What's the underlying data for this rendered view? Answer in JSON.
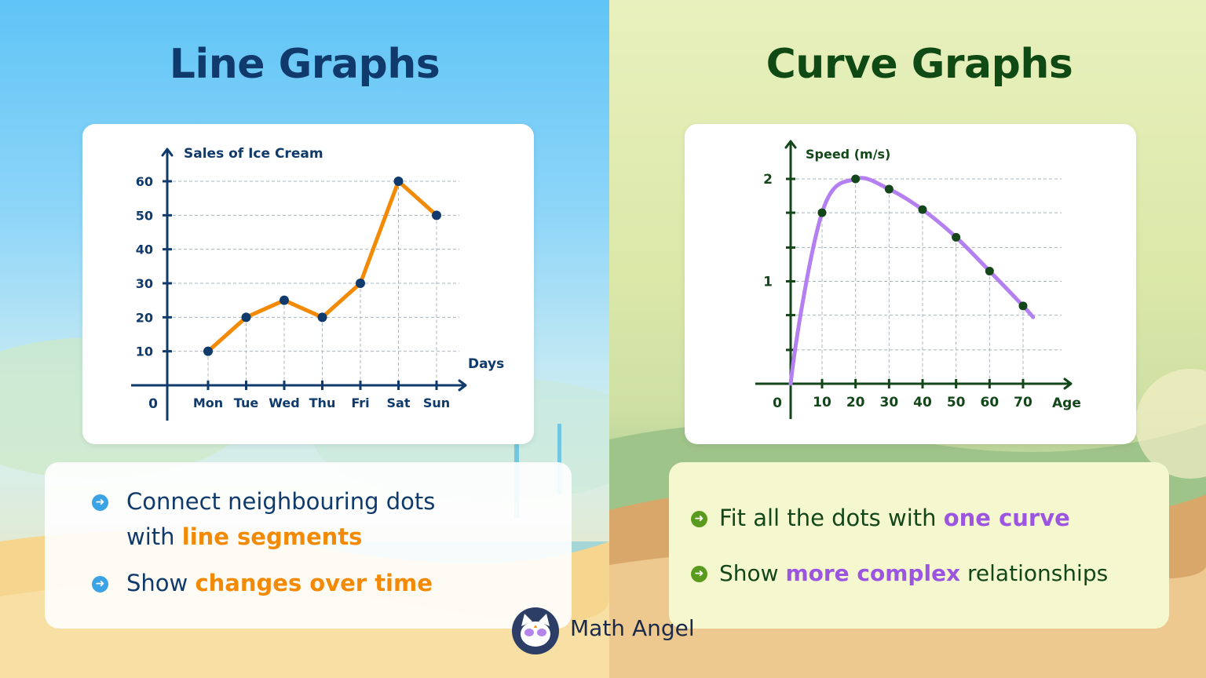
{
  "left": {
    "title": "Line Graphs",
    "colors": {
      "title": "#0f3a6b",
      "line": "#f28a06",
      "point": "#0f3a6b",
      "axis": "#0f3a6b",
      "bullet": "#3aa3e6",
      "text": "#0f3a6b"
    },
    "bullets": [
      {
        "parts": [
          "Connect neighbouring dots",
          "with ",
          "line segments"
        ]
      },
      {
        "parts": [
          "Show ",
          "changes over time"
        ]
      }
    ]
  },
  "right": {
    "title": "Curve Graphs",
    "colors": {
      "title": "#0f4a14",
      "curve": "#b47ff0",
      "point": "#13471a",
      "axis": "#13471a",
      "bullet": "#5a9a1e",
      "text": "#13471a"
    },
    "bullets": [
      {
        "parts": [
          "Fit all the dots with ",
          "one curve"
        ]
      },
      {
        "parts": [
          "Show ",
          "more complex",
          " relationships"
        ]
      }
    ]
  },
  "brand": {
    "name": "Math Angel"
  },
  "chart_data": [
    {
      "type": "line",
      "title": "",
      "ylabel": "Sales of Ice Cream",
      "xlabel": "Days",
      "origin_label": "0",
      "categories": [
        "Mon",
        "Tue",
        "Wed",
        "Thu",
        "Fri",
        "Sat",
        "Sun"
      ],
      "y_ticks": [
        10,
        20,
        30,
        40,
        50,
        60
      ],
      "ylim": [
        0,
        60
      ],
      "series": [
        {
          "values": [
            10,
            20,
            25,
            20,
            30,
            60,
            50
          ]
        }
      ],
      "grid": true
    },
    {
      "type": "line",
      "title": "",
      "ylabel": "Speed (m/s)",
      "xlabel": "Age",
      "origin_label": "0",
      "x_ticks": [
        10,
        20,
        30,
        40,
        50,
        60,
        70
      ],
      "y_ticks": [
        1,
        2
      ],
      "y_minor_ticks": [
        0.33,
        0.67,
        1.33,
        1.67
      ],
      "xlim": [
        0,
        70
      ],
      "ylim": [
        0,
        2
      ],
      "curve": "smooth",
      "series": [
        {
          "points": [
            [
              10,
              1.67
            ],
            [
              20,
              2.0
            ],
            [
              30,
              1.9
            ],
            [
              40,
              1.7
            ],
            [
              50,
              1.43
            ],
            [
              60,
              1.1
            ],
            [
              70,
              0.76
            ]
          ]
        }
      ],
      "grid": true
    }
  ]
}
